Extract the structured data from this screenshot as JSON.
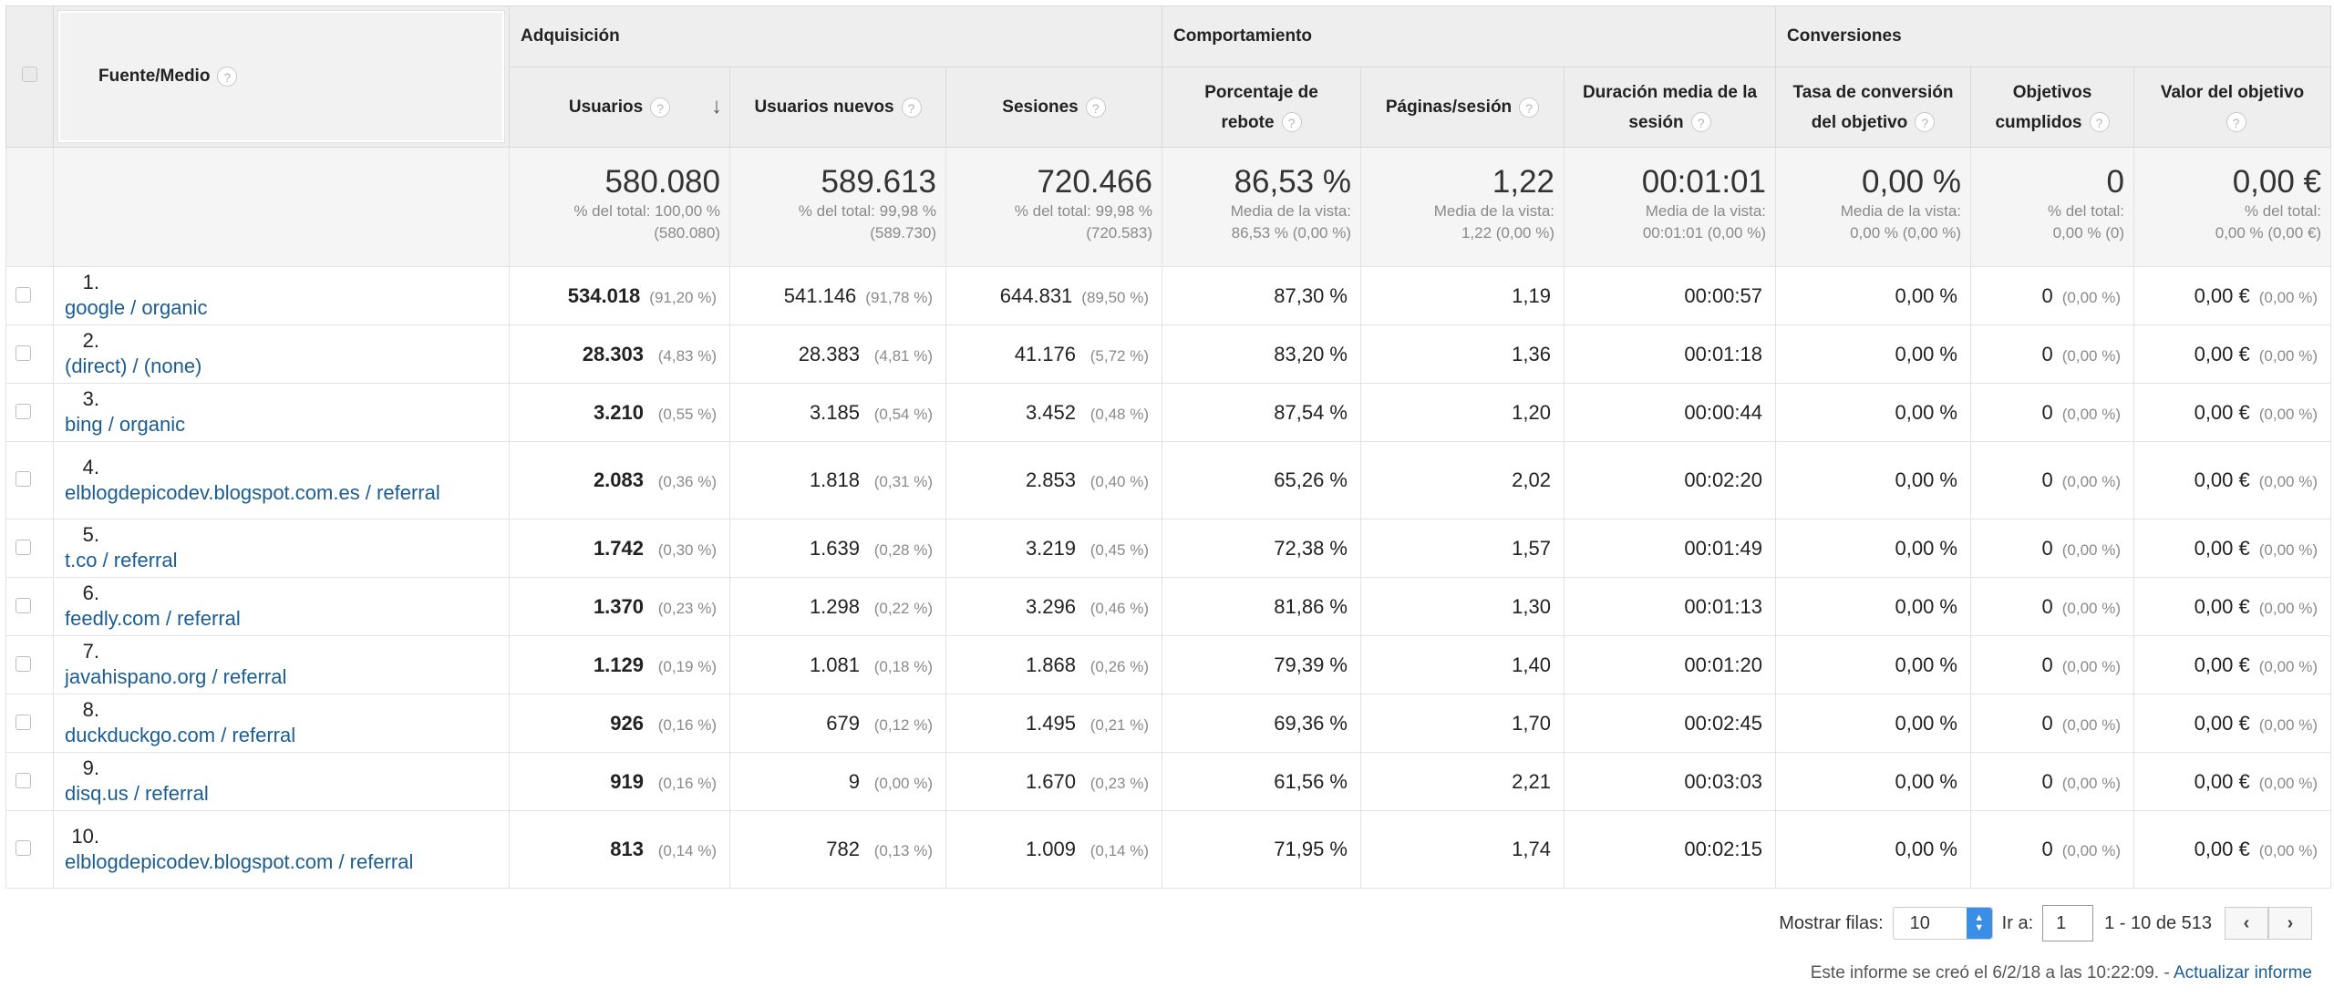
{
  "groups": {
    "acquisition": "Adquisición",
    "behavior": "Comportamiento",
    "conversions": "Conversiones"
  },
  "columns": {
    "source": "Fuente/Medio",
    "users": "Usuarios",
    "new_users": "Usuarios nuevos",
    "sessions": "Sesiones",
    "bounce_l1": "Porcentaje de",
    "bounce_l2": "rebote",
    "pages": "Páginas/sesión",
    "duration_l1": "Duración media de la",
    "duration_l2": "sesión",
    "conv_l1": "Tasa de conversión",
    "conv_l2": "del objetivo",
    "goals_l1": "Objetivos",
    "goals_l2": "cumplidos",
    "value_l1": "Valor del objetivo"
  },
  "totals": {
    "users": {
      "value": "580.080",
      "l1": "% del total: 100,00 %",
      "l2": "(580.080)"
    },
    "new_users": {
      "value": "589.613",
      "l1": "% del total: 99,98 %",
      "l2": "(589.730)"
    },
    "sessions": {
      "value": "720.466",
      "l1": "% del total: 99,98 %",
      "l2": "(720.583)"
    },
    "bounce": {
      "value": "86,53 %",
      "l1": "Media de la vista:",
      "l2": "86,53 % (0,00 %)"
    },
    "pages": {
      "value": "1,22",
      "l1": "Media de la vista:",
      "l2": "1,22 (0,00 %)"
    },
    "duration": {
      "value": "00:01:01",
      "l1": "Media de la vista:",
      "l2": "00:01:01 (0,00 %)"
    },
    "conv": {
      "value": "0,00 %",
      "l1": "Media de la vista:",
      "l2": "0,00 % (0,00 %)"
    },
    "goals": {
      "value": "0",
      "l1": "% del total:",
      "l2": "0,00 % (0)"
    },
    "value": {
      "value": "0,00 €",
      "l1": "% del total:",
      "l2": "0,00 % (0,00 €)"
    }
  },
  "rows": [
    {
      "n": "1.",
      "src": "google / organic",
      "users": "534.018",
      "users_pct": "(91,20 %)",
      "new": "541.146",
      "new_pct": "(91,78 %)",
      "ses": "644.831",
      "ses_pct": "(89,50 %)",
      "bounce": "87,30 %",
      "pages": "1,19",
      "dur": "00:00:57",
      "conv": "0,00 %",
      "goals": "0",
      "goals_pct": "(0,00 %)",
      "val": "0,00 €",
      "val_pct": "(0,00 %)"
    },
    {
      "n": "2.",
      "src": "(direct) / (none)",
      "users": "28.303",
      "users_pct": "(4,83 %)",
      "new": "28.383",
      "new_pct": "(4,81 %)",
      "ses": "41.176",
      "ses_pct": "(5,72 %)",
      "bounce": "83,20 %",
      "pages": "1,36",
      "dur": "00:01:18",
      "conv": "0,00 %",
      "goals": "0",
      "goals_pct": "(0,00 %)",
      "val": "0,00 €",
      "val_pct": "(0,00 %)"
    },
    {
      "n": "3.",
      "src": "bing / organic",
      "users": "3.210",
      "users_pct": "(0,55 %)",
      "new": "3.185",
      "new_pct": "(0,54 %)",
      "ses": "3.452",
      "ses_pct": "(0,48 %)",
      "bounce": "87,54 %",
      "pages": "1,20",
      "dur": "00:00:44",
      "conv": "0,00 %",
      "goals": "0",
      "goals_pct": "(0,00 %)",
      "val": "0,00 €",
      "val_pct": "(0,00 %)"
    },
    {
      "n": "4.",
      "src": "elblogdepicodev.blogspot.com.es / referral",
      "users": "2.083",
      "users_pct": "(0,36 %)",
      "new": "1.818",
      "new_pct": "(0,31 %)",
      "ses": "2.853",
      "ses_pct": "(0,40 %)",
      "bounce": "65,26 %",
      "pages": "2,02",
      "dur": "00:02:20",
      "conv": "0,00 %",
      "goals": "0",
      "goals_pct": "(0,00 %)",
      "val": "0,00 €",
      "val_pct": "(0,00 %)"
    },
    {
      "n": "5.",
      "src": "t.co / referral",
      "users": "1.742",
      "users_pct": "(0,30 %)",
      "new": "1.639",
      "new_pct": "(0,28 %)",
      "ses": "3.219",
      "ses_pct": "(0,45 %)",
      "bounce": "72,38 %",
      "pages": "1,57",
      "dur": "00:01:49",
      "conv": "0,00 %",
      "goals": "0",
      "goals_pct": "(0,00 %)",
      "val": "0,00 €",
      "val_pct": "(0,00 %)"
    },
    {
      "n": "6.",
      "src": "feedly.com / referral",
      "users": "1.370",
      "users_pct": "(0,23 %)",
      "new": "1.298",
      "new_pct": "(0,22 %)",
      "ses": "3.296",
      "ses_pct": "(0,46 %)",
      "bounce": "81,86 %",
      "pages": "1,30",
      "dur": "00:01:13",
      "conv": "0,00 %",
      "goals": "0",
      "goals_pct": "(0,00 %)",
      "val": "0,00 €",
      "val_pct": "(0,00 %)"
    },
    {
      "n": "7.",
      "src": "javahispano.org / referral",
      "users": "1.129",
      "users_pct": "(0,19 %)",
      "new": "1.081",
      "new_pct": "(0,18 %)",
      "ses": "1.868",
      "ses_pct": "(0,26 %)",
      "bounce": "79,39 %",
      "pages": "1,40",
      "dur": "00:01:20",
      "conv": "0,00 %",
      "goals": "0",
      "goals_pct": "(0,00 %)",
      "val": "0,00 €",
      "val_pct": "(0,00 %)"
    },
    {
      "n": "8.",
      "src": "duckduckgo.com / referral",
      "users": "926",
      "users_pct": "(0,16 %)",
      "new": "679",
      "new_pct": "(0,12 %)",
      "ses": "1.495",
      "ses_pct": "(0,21 %)",
      "bounce": "69,36 %",
      "pages": "1,70",
      "dur": "00:02:45",
      "conv": "0,00 %",
      "goals": "0",
      "goals_pct": "(0,00 %)",
      "val": "0,00 €",
      "val_pct": "(0,00 %)"
    },
    {
      "n": "9.",
      "src": "disq.us / referral",
      "users": "919",
      "users_pct": "(0,16 %)",
      "new": "9",
      "new_pct": "(0,00 %)",
      "ses": "1.670",
      "ses_pct": "(0,23 %)",
      "bounce": "61,56 %",
      "pages": "2,21",
      "dur": "00:03:03",
      "conv": "0,00 %",
      "goals": "0",
      "goals_pct": "(0,00 %)",
      "val": "0,00 €",
      "val_pct": "(0,00 %)"
    },
    {
      "n": "10.",
      "src": "elblogdepicodev.blogspot.com / referral",
      "users": "813",
      "users_pct": "(0,14 %)",
      "new": "782",
      "new_pct": "(0,13 %)",
      "ses": "1.009",
      "ses_pct": "(0,14 %)",
      "bounce": "71,95 %",
      "pages": "1,74",
      "dur": "00:02:15",
      "conv": "0,00 %",
      "goals": "0",
      "goals_pct": "(0,00 %)",
      "val": "0,00 €",
      "val_pct": "(0,00 %)"
    }
  ],
  "pagination": {
    "show_rows_label": "Mostrar filas:",
    "rows_value": "10",
    "goto_label": "Ir a:",
    "goto_value": "1",
    "range": "1 - 10 de 513",
    "prev_icon": "‹",
    "next_icon": "›"
  },
  "footer": {
    "text": "Este informe se creó el 6/2/18 a las 10:22:09. -",
    "link": "Actualizar informe"
  },
  "help_icon": "?",
  "sort_icon": "↓",
  "colors": {
    "link": "#1b5c91",
    "header_bg": "#eeeeee",
    "spinner": "#3b8ee6"
  }
}
